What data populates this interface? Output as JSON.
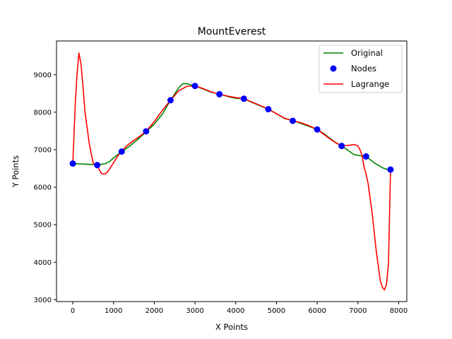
{
  "chart_data": {
    "type": "line",
    "title": "MountEverest",
    "xlabel": "X Points",
    "ylabel": "Y Points",
    "xlim": [
      -400,
      8200
    ],
    "ylim": [
      2950,
      9900
    ],
    "xticks": [
      0,
      1000,
      2000,
      3000,
      4000,
      5000,
      6000,
      7000,
      8000
    ],
    "yticks": [
      3000,
      4000,
      5000,
      6000,
      7000,
      8000,
      9000
    ],
    "legend_position": "top-right",
    "grid": false,
    "series": [
      {
        "name": "Original",
        "kind": "line",
        "color": "#008000",
        "x": [
          0,
          200,
          400,
          600,
          700,
          800,
          900,
          1000,
          1200,
          1400,
          1600,
          1800,
          2000,
          2200,
          2400,
          2600,
          2700,
          2800,
          3000,
          3200,
          3400,
          3600,
          3800,
          4000,
          4200,
          4400,
          4600,
          4800,
          5000,
          5200,
          5400,
          5600,
          5800,
          6000,
          6200,
          6400,
          6600,
          6800,
          6900,
          7000,
          7200,
          7400,
          7600,
          7700,
          7800
        ],
        "y": [
          6630,
          6620,
          6610,
          6600,
          6610,
          6630,
          6680,
          6780,
          6950,
          7100,
          7280,
          7480,
          7680,
          7950,
          8320,
          8650,
          8760,
          8760,
          8700,
          8620,
          8530,
          8490,
          8420,
          8370,
          8360,
          8260,
          8170,
          8080,
          7960,
          7830,
          7780,
          7700,
          7620,
          7540,
          7400,
          7230,
          7100,
          6950,
          6870,
          6850,
          6820,
          6650,
          6520,
          6480,
          6470
        ]
      },
      {
        "name": "Nodes",
        "kind": "scatter",
        "color": "#0000ff",
        "x": [
          0,
          600,
          1200,
          1800,
          2400,
          3000,
          3600,
          4200,
          4800,
          5400,
          6000,
          6600,
          7200,
          7800
        ],
        "y": [
          6630,
          6590,
          6950,
          7490,
          8320,
          8700,
          8480,
          8360,
          8080,
          7770,
          7540,
          7100,
          6820,
          6470
        ]
      },
      {
        "name": "Lagrange",
        "kind": "line",
        "color": "#ff0000",
        "x": [
          0,
          60,
          100,
          150,
          200,
          250,
          300,
          350,
          400,
          450,
          500,
          550,
          600,
          650,
          700,
          750,
          800,
          850,
          900,
          1000,
          1100,
          1200,
          1300,
          1400,
          1500,
          1600,
          1800,
          2000,
          2200,
          2400,
          2600,
          2800,
          3000,
          3200,
          3400,
          3600,
          3800,
          4000,
          4200,
          4400,
          4600,
          4800,
          5000,
          5200,
          5400,
          5600,
          5800,
          6000,
          6200,
          6400,
          6600,
          6800,
          6900,
          7000,
          7050,
          7100,
          7150,
          7200,
          7250,
          7300,
          7350,
          7400,
          7450,
          7500,
          7550,
          7600,
          7650,
          7700,
          7750,
          7800
        ],
        "y": [
          6630,
          8200,
          8950,
          9580,
          9300,
          8700,
          8000,
          7600,
          7200,
          6900,
          6650,
          6570,
          6590,
          6460,
          6370,
          6350,
          6360,
          6400,
          6480,
          6650,
          6830,
          6950,
          7080,
          7170,
          7250,
          7320,
          7490,
          7750,
          8050,
          8320,
          8570,
          8690,
          8700,
          8630,
          8540,
          8480,
          8430,
          8390,
          8360,
          8270,
          8180,
          8080,
          7960,
          7840,
          7770,
          7720,
          7640,
          7540,
          7380,
          7220,
          7100,
          7120,
          7140,
          7100,
          7000,
          6850,
          6550,
          6350,
          6100,
          5700,
          5300,
          4800,
          4300,
          3900,
          3500,
          3340,
          3260,
          3400,
          3950,
          6470
        ]
      }
    ]
  }
}
